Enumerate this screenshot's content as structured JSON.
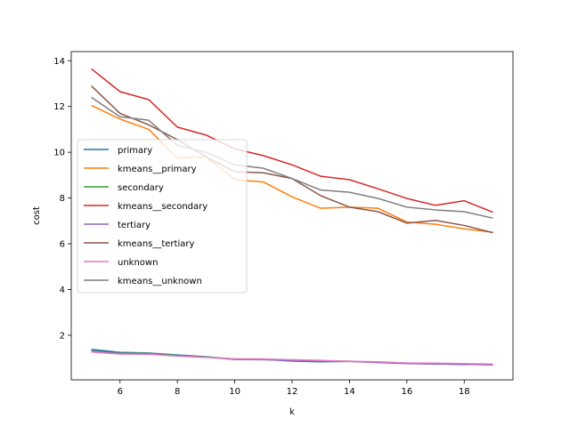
{
  "chart_data": {
    "type": "line",
    "xlabel": "k",
    "ylabel": "cost",
    "xlim": [
      4.3,
      19.7
    ],
    "ylim": [
      0.05,
      14.4
    ],
    "xticks": [
      6,
      8,
      10,
      12,
      14,
      16,
      18
    ],
    "yticks": [
      2,
      4,
      6,
      8,
      10,
      12,
      14
    ],
    "legend_position": "center-left",
    "x": [
      5,
      6,
      7,
      8,
      9,
      10,
      11,
      12,
      13,
      14,
      15,
      16,
      17,
      18,
      19
    ],
    "series": [
      {
        "name": "primary",
        "color": "#1f77b4",
        "values": [
          1.38,
          1.25,
          1.22,
          1.14,
          1.06,
          0.95,
          0.94,
          0.87,
          0.84,
          0.86,
          0.81,
          0.77,
          0.75,
          0.72,
          0.72
        ]
      },
      {
        "name": "kmeans__primary",
        "color": "#ff7f0e",
        "values": [
          12.05,
          11.45,
          11.0,
          9.75,
          9.8,
          8.8,
          8.7,
          8.05,
          7.55,
          7.6,
          7.55,
          6.95,
          6.85,
          6.65,
          6.5
        ]
      },
      {
        "name": "secondary",
        "color": "#2ca02c",
        "values": [
          1.32,
          1.22,
          1.2,
          1.12,
          1.05,
          0.96,
          0.96,
          0.91,
          0.87,
          0.86,
          0.82,
          0.78,
          0.76,
          0.74,
          0.73
        ]
      },
      {
        "name": "kmeans__secondary",
        "color": "#d62728",
        "values": [
          13.65,
          12.65,
          12.3,
          11.1,
          10.75,
          10.15,
          9.85,
          9.45,
          8.95,
          8.8,
          8.4,
          7.98,
          7.68,
          7.88,
          7.38
        ]
      },
      {
        "name": "tertiary",
        "color": "#9467bd",
        "values": [
          1.3,
          1.2,
          1.19,
          1.1,
          1.04,
          0.94,
          0.93,
          0.9,
          0.86,
          0.85,
          0.81,
          0.76,
          0.74,
          0.73,
          0.7
        ]
      },
      {
        "name": "kmeans__tertiary",
        "color": "#8c564b",
        "values": [
          12.9,
          11.7,
          11.2,
          10.55,
          9.8,
          9.15,
          9.1,
          8.85,
          8.1,
          7.6,
          7.4,
          6.9,
          7.02,
          6.8,
          6.48
        ]
      },
      {
        "name": "unknown",
        "color": "#e377c2",
        "values": [
          1.27,
          1.18,
          1.17,
          1.09,
          1.03,
          0.97,
          0.96,
          0.93,
          0.9,
          0.86,
          0.84,
          0.79,
          0.78,
          0.76,
          0.74
        ]
      },
      {
        "name": "kmeans__unknown",
        "color": "#7f7f7f",
        "values": [
          12.4,
          11.55,
          11.4,
          10.3,
          10.0,
          9.45,
          9.3,
          8.85,
          8.35,
          8.25,
          7.98,
          7.6,
          7.48,
          7.4,
          7.12
        ]
      }
    ]
  }
}
